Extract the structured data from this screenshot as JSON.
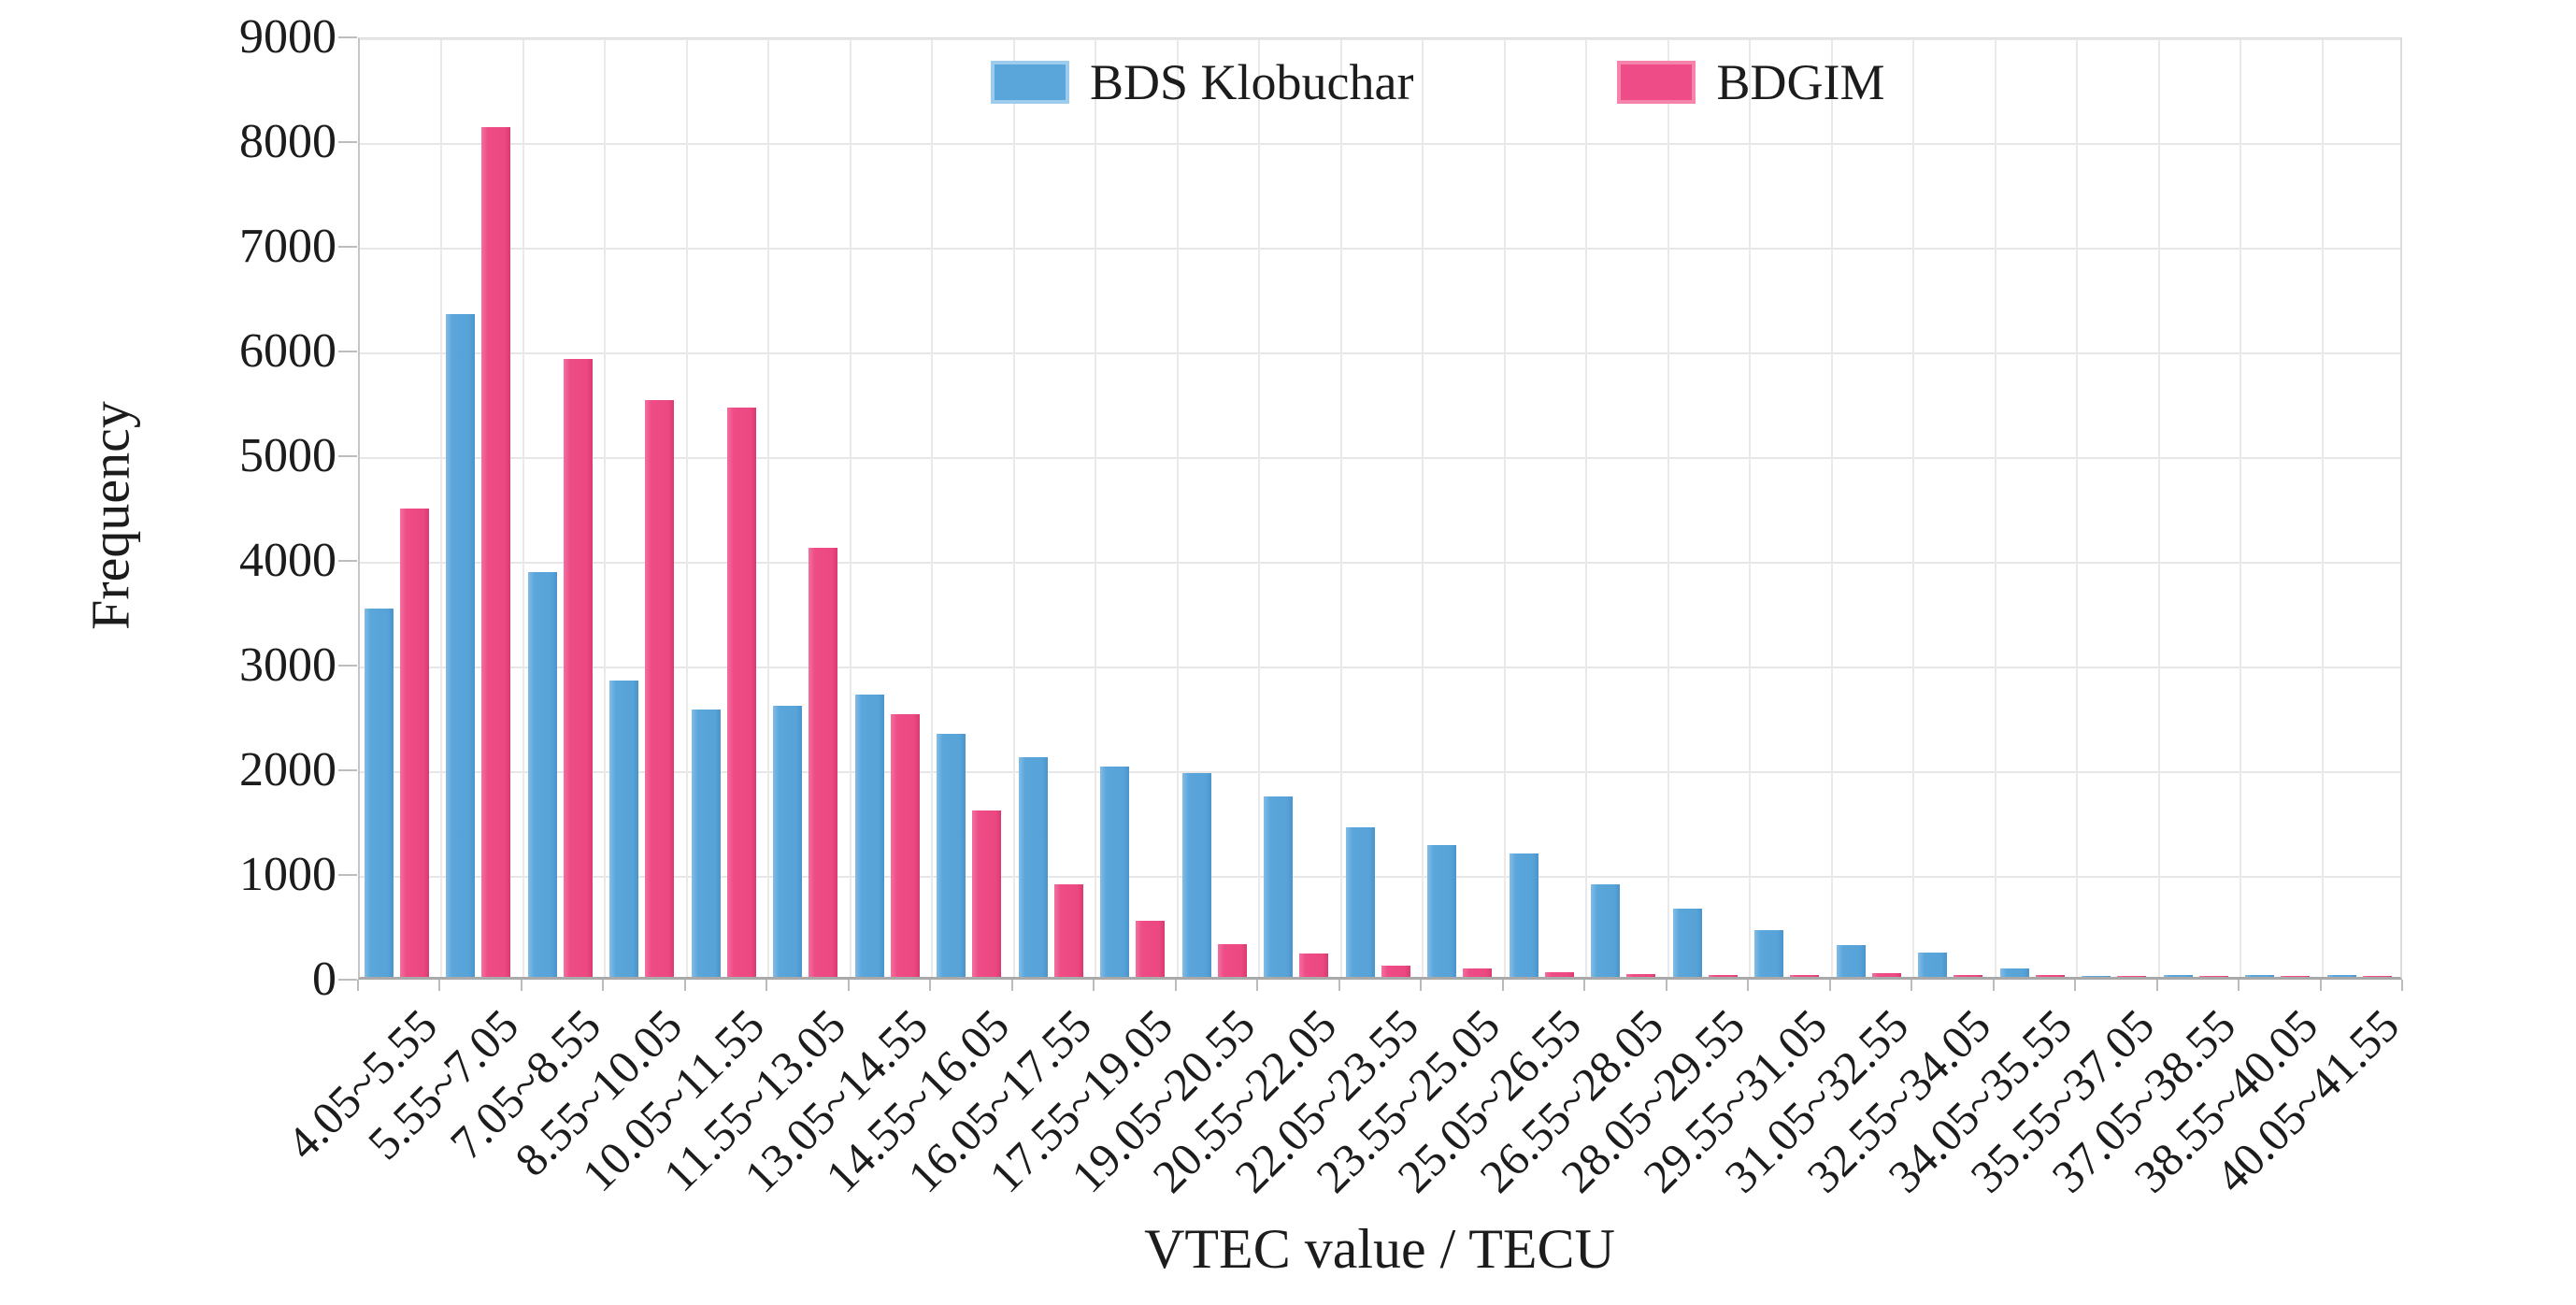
{
  "chart_data": {
    "type": "bar",
    "title": "",
    "xlabel": "VTEC value / TECU",
    "ylabel": "Frequency",
    "ylim": [
      0,
      9000
    ],
    "ytick_step": 1000,
    "grid": true,
    "legend_position": "top-center-inside",
    "x_label_rotation_deg": 45,
    "categories": [
      "4.05~5.55",
      "5.55~7.05",
      "7.05~8.55",
      "8.55~10.05",
      "10.05~11.55",
      "11.55~13.05",
      "13.05~14.55",
      "14.55~16.05",
      "16.05~17.55",
      "17.55~19.05",
      "19.05~20.55",
      "20.55~22.05",
      "22.05~23.55",
      "23.55~25.05",
      "25.05~26.55",
      "26.55~28.05",
      "28.05~29.55",
      "29.55~31.05",
      "31.05~32.55",
      "32.55~34.05",
      "34.05~35.55",
      "35.55~37.05",
      "37.05~38.55",
      "38.55~40.05",
      "40.05~41.55"
    ],
    "series": [
      {
        "name": "BDS Klobuchar",
        "color": "#5aa6db",
        "values": [
          3520,
          6330,
          3870,
          2830,
          2550,
          2590,
          2700,
          2320,
          2100,
          2010,
          1950,
          1720,
          1430,
          1260,
          1180,
          880,
          650,
          450,
          300,
          230,
          80,
          12,
          22,
          20,
          18
        ]
      },
      {
        "name": "BDGIM",
        "color": "#ee4c86",
        "values": [
          4470,
          8120,
          5900,
          5510,
          5440,
          4100,
          2510,
          1590,
          880,
          540,
          310,
          220,
          110,
          80,
          45,
          30,
          15,
          20,
          35,
          20,
          18,
          10,
          8,
          5,
          8
        ]
      }
    ],
    "ytick_labels": [
      "0",
      "1000",
      "2000",
      "3000",
      "4000",
      "5000",
      "6000",
      "7000",
      "8000",
      "9000"
    ]
  },
  "colors": {
    "grid": "#e7e7e7",
    "axis": "#a9a9a9",
    "text": "#1c1c1c",
    "background": "#ffffff"
  }
}
